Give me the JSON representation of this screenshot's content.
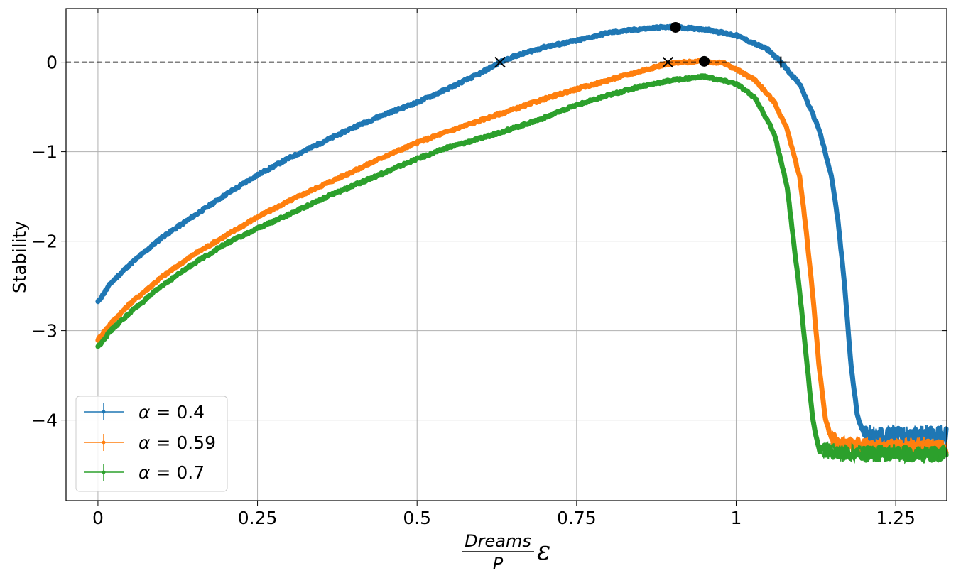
{
  "chart_data": {
    "type": "line",
    "title": "",
    "ylabel": "Stability",
    "xlabel": {
      "numerator": "Dreams",
      "denominator": "P",
      "symbol": "ε"
    },
    "xlim": [
      -0.05,
      1.33
    ],
    "ylim": [
      -4.9,
      0.6
    ],
    "xticks": [
      0,
      0.25,
      0.5,
      0.75,
      1,
      1.25
    ],
    "xtick_labels": [
      "0",
      "0.25",
      "0.5",
      "0.75",
      "1",
      "1.25"
    ],
    "yticks": [
      0,
      -1,
      -2,
      -3,
      -4
    ],
    "ytick_labels": [
      "0",
      "−1",
      "−2",
      "−3",
      "−4"
    ],
    "grid": true,
    "reference_line": {
      "y": 0,
      "style": "dashed",
      "color": "#000000"
    },
    "legend_position": "lower-left",
    "series": [
      {
        "name": "α = 0.4",
        "legend_symbol": "α",
        "legend_value": " = 0.4",
        "color": "#1f77b4",
        "points": [
          [
            0,
            -2.68
          ],
          [
            0.02,
            -2.47
          ],
          [
            0.05,
            -2.26
          ],
          [
            0.1,
            -1.96
          ],
          [
            0.15,
            -1.72
          ],
          [
            0.2,
            -1.48
          ],
          [
            0.25,
            -1.26
          ],
          [
            0.3,
            -1.07
          ],
          [
            0.35,
            -0.9
          ],
          [
            0.4,
            -0.73
          ],
          [
            0.45,
            -0.58
          ],
          [
            0.5,
            -0.45
          ],
          [
            0.55,
            -0.29
          ],
          [
            0.6,
            -0.12
          ],
          [
            0.63,
            0.0
          ],
          [
            0.65,
            0.06
          ],
          [
            0.7,
            0.17
          ],
          [
            0.75,
            0.24
          ],
          [
            0.8,
            0.33
          ],
          [
            0.85,
            0.37
          ],
          [
            0.88,
            0.39
          ],
          [
            0.905,
            0.39
          ],
          [
            0.95,
            0.37
          ],
          [
            1.0,
            0.3
          ],
          [
            1.05,
            0.14
          ],
          [
            1.07,
            0.0
          ],
          [
            1.1,
            -0.25
          ],
          [
            1.13,
            -0.75
          ],
          [
            1.15,
            -1.3
          ],
          [
            1.16,
            -1.8
          ],
          [
            1.17,
            -2.5
          ],
          [
            1.18,
            -3.4
          ],
          [
            1.19,
            -3.95
          ],
          [
            1.2,
            -4.15
          ],
          [
            1.22,
            -4.18
          ],
          [
            1.25,
            -4.17
          ],
          [
            1.28,
            -4.18
          ],
          [
            1.3,
            -4.17
          ],
          [
            1.33,
            -4.17
          ]
        ],
        "noise": {
          "from_x": 1.2,
          "amplitude": 0.08
        },
        "markers": [
          {
            "x": 0.63,
            "y": 0,
            "symbol": "x"
          },
          {
            "x": 0.905,
            "y": 0.39,
            "symbol": "dot"
          },
          {
            "x": 1.07,
            "y": 0,
            "symbol": "+"
          }
        ]
      },
      {
        "name": "α = 0.59",
        "legend_symbol": "α",
        "legend_value": " = 0.59",
        "color": "#ff7f0e",
        "points": [
          [
            0,
            -3.1
          ],
          [
            0.02,
            -2.92
          ],
          [
            0.05,
            -2.7
          ],
          [
            0.1,
            -2.4
          ],
          [
            0.15,
            -2.15
          ],
          [
            0.2,
            -1.94
          ],
          [
            0.25,
            -1.73
          ],
          [
            0.3,
            -1.55
          ],
          [
            0.35,
            -1.38
          ],
          [
            0.4,
            -1.22
          ],
          [
            0.45,
            -1.05
          ],
          [
            0.5,
            -0.9
          ],
          [
            0.55,
            -0.77
          ],
          [
            0.6,
            -0.65
          ],
          [
            0.65,
            -0.53
          ],
          [
            0.7,
            -0.41
          ],
          [
            0.75,
            -0.3
          ],
          [
            0.8,
            -0.2
          ],
          [
            0.85,
            -0.1
          ],
          [
            0.89,
            -0.02
          ],
          [
            0.92,
            0.0
          ],
          [
            0.95,
            0.01
          ],
          [
            0.98,
            -0.01
          ],
          [
            1.0,
            -0.08
          ],
          [
            1.03,
            -0.2
          ],
          [
            1.06,
            -0.45
          ],
          [
            1.08,
            -0.75
          ],
          [
            1.1,
            -1.3
          ],
          [
            1.11,
            -1.9
          ],
          [
            1.12,
            -2.6
          ],
          [
            1.13,
            -3.4
          ],
          [
            1.14,
            -4.0
          ],
          [
            1.15,
            -4.22
          ],
          [
            1.18,
            -4.28
          ],
          [
            1.22,
            -4.3
          ],
          [
            1.26,
            -4.3
          ],
          [
            1.3,
            -4.3
          ],
          [
            1.33,
            -4.32
          ]
        ],
        "noise": {
          "from_x": 1.15,
          "amplitude": 0.07
        },
        "markers": [
          {
            "x": 0.893,
            "y": 0,
            "symbol": "x"
          },
          {
            "x": 0.95,
            "y": 0.01,
            "symbol": "dot"
          }
        ]
      },
      {
        "name": "α = 0.7",
        "legend_symbol": "α",
        "legend_value": " = 0.7",
        "color": "#2ca02c",
        "points": [
          [
            0,
            -3.18
          ],
          [
            0.02,
            -3.0
          ],
          [
            0.05,
            -2.8
          ],
          [
            0.1,
            -2.5
          ],
          [
            0.15,
            -2.25
          ],
          [
            0.2,
            -2.03
          ],
          [
            0.25,
            -1.86
          ],
          [
            0.3,
            -1.7
          ],
          [
            0.35,
            -1.53
          ],
          [
            0.4,
            -1.38
          ],
          [
            0.45,
            -1.23
          ],
          [
            0.5,
            -1.08
          ],
          [
            0.55,
            -0.95
          ],
          [
            0.6,
            -0.85
          ],
          [
            0.65,
            -0.74
          ],
          [
            0.7,
            -0.62
          ],
          [
            0.75,
            -0.48
          ],
          [
            0.8,
            -0.37
          ],
          [
            0.85,
            -0.27
          ],
          [
            0.9,
            -0.2
          ],
          [
            0.95,
            -0.16
          ],
          [
            1.0,
            -0.24
          ],
          [
            1.03,
            -0.4
          ],
          [
            1.06,
            -0.8
          ],
          [
            1.08,
            -1.4
          ],
          [
            1.09,
            -2.0
          ],
          [
            1.1,
            -2.6
          ],
          [
            1.11,
            -3.3
          ],
          [
            1.12,
            -4.0
          ],
          [
            1.13,
            -4.33
          ],
          [
            1.15,
            -4.36
          ],
          [
            1.2,
            -4.38
          ],
          [
            1.25,
            -4.37
          ],
          [
            1.3,
            -4.38
          ],
          [
            1.33,
            -4.37
          ]
        ],
        "noise": {
          "from_x": 1.13,
          "amplitude": 0.07
        },
        "markers": []
      }
    ]
  }
}
